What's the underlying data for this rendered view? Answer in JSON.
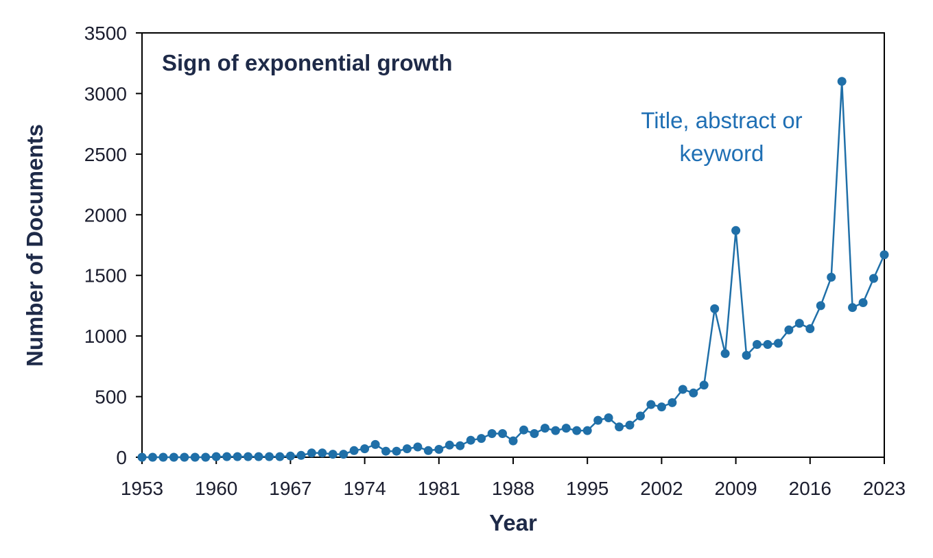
{
  "chart_data": {
    "type": "line",
    "title": "Sign of exponential growth",
    "xlabel": "Year",
    "ylabel": "Number of Documents",
    "annotation": [
      "Title, abstract or",
      "keyword"
    ],
    "xlim": [
      1953,
      2023
    ],
    "ylim": [
      0,
      3500
    ],
    "x_ticks": [
      1953,
      1960,
      1967,
      1974,
      1981,
      1988,
      1995,
      2002,
      2009,
      2016,
      2023
    ],
    "y_ticks": [
      0,
      500,
      1000,
      1500,
      2000,
      2500,
      3000,
      3500
    ],
    "series": [
      {
        "name": "Title, abstract or keyword",
        "color": "#1f6fa8",
        "x": [
          1953,
          1954,
          1955,
          1956,
          1957,
          1958,
          1959,
          1960,
          1961,
          1962,
          1963,
          1964,
          1965,
          1966,
          1967,
          1968,
          1969,
          1970,
          1971,
          1972,
          1973,
          1974,
          1975,
          1976,
          1977,
          1978,
          1979,
          1980,
          1981,
          1982,
          1983,
          1984,
          1985,
          1986,
          1987,
          1988,
          1989,
          1990,
          1991,
          1992,
          1993,
          1994,
          1995,
          1996,
          1997,
          1998,
          1999,
          2000,
          2001,
          2002,
          2003,
          2004,
          2005,
          2006,
          2007,
          2008,
          2009,
          2010,
          2011,
          2012,
          2013,
          2014,
          2015,
          2016,
          2017,
          2018,
          2019,
          2020,
          2021,
          2022,
          2023
        ],
        "y": [
          0,
          0,
          0,
          0,
          0,
          0,
          0,
          5,
          5,
          5,
          5,
          5,
          5,
          5,
          10,
          15,
          35,
          35,
          25,
          25,
          55,
          70,
          105,
          50,
          50,
          70,
          85,
          55,
          65,
          100,
          95,
          140,
          155,
          195,
          195,
          135,
          225,
          195,
          240,
          220,
          240,
          220,
          220,
          305,
          325,
          250,
          265,
          340,
          435,
          415,
          450,
          560,
          530,
          595,
          1225,
          855,
          1870,
          840,
          930,
          930,
          940,
          1050,
          1105,
          1060,
          1250,
          1485,
          3100,
          1235,
          1275,
          1475,
          1670
        ]
      }
    ]
  }
}
